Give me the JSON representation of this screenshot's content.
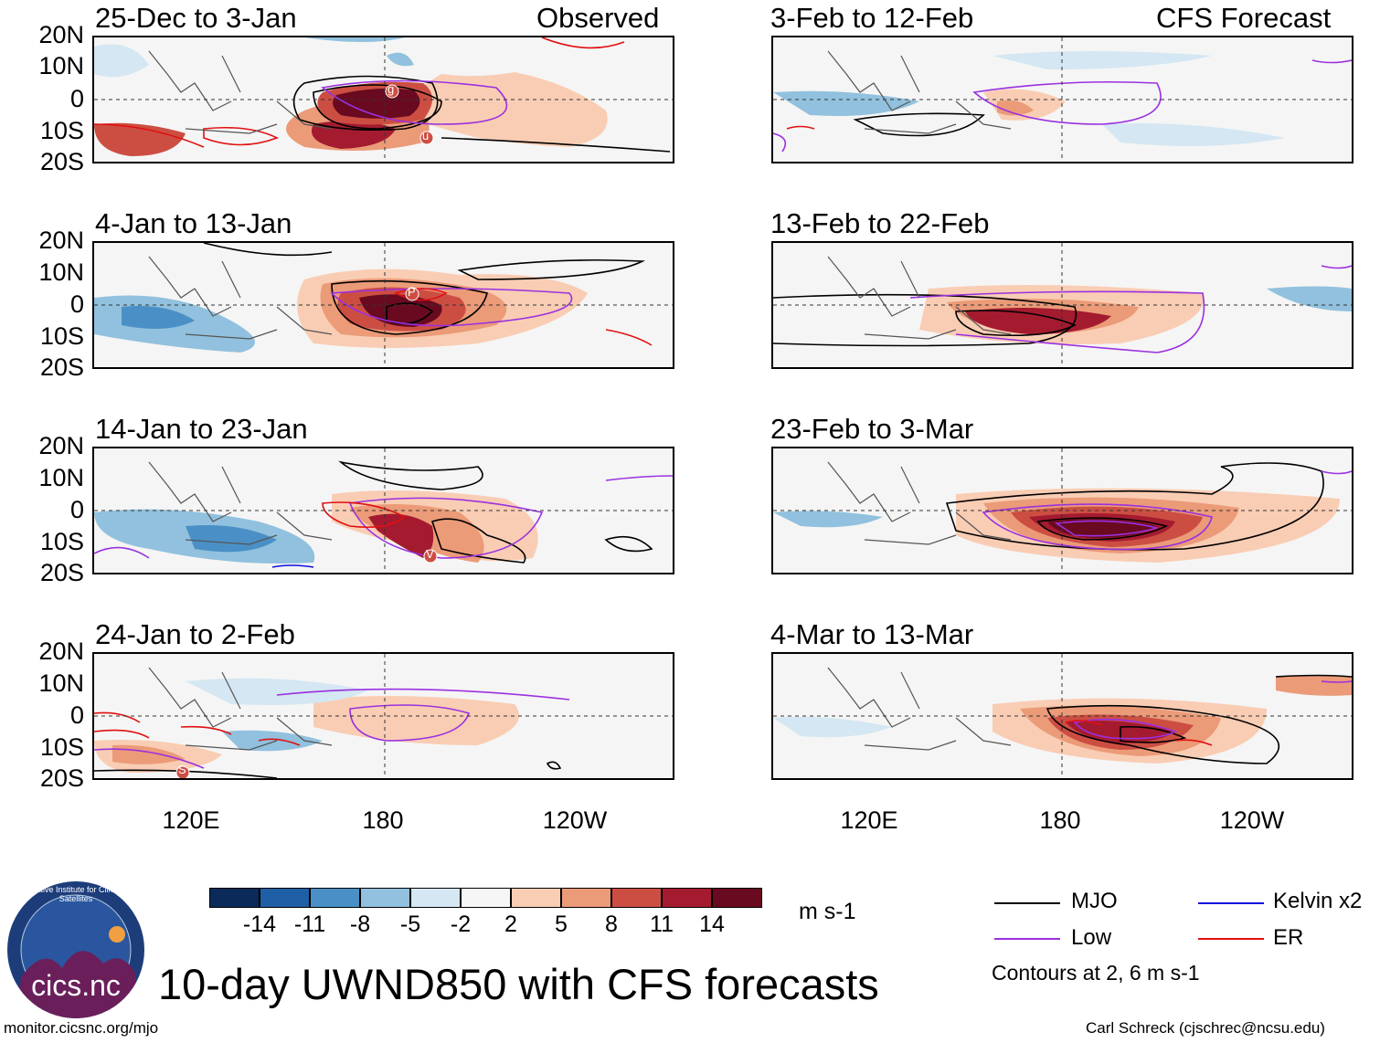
{
  "left_panels": [
    {
      "title": "25-Dec to 3-Jan",
      "tag": "Observed"
    },
    {
      "title": "4-Jan to 13-Jan",
      "tag": ""
    },
    {
      "title": "14-Jan to 23-Jan",
      "tag": ""
    },
    {
      "title": "24-Jan to 2-Feb",
      "tag": ""
    }
  ],
  "right_panels": [
    {
      "title": "3-Feb to 12-Feb",
      "tag": "CFS Forecast"
    },
    {
      "title": "13-Feb to 22-Feb",
      "tag": ""
    },
    {
      "title": "23-Feb to 3-Mar",
      "tag": ""
    },
    {
      "title": "4-Mar to 13-Mar",
      "tag": ""
    }
  ],
  "y_ticks": [
    "20N",
    "10N",
    "0",
    "10S",
    "20S"
  ],
  "x_ticks": [
    "120E",
    "180",
    "120W"
  ],
  "markers": {
    "g": "g",
    "u": "u",
    "p": "P",
    "v": "V",
    "s": "S"
  },
  "colorbar": {
    "labels": [
      "-14",
      "-11",
      "-8",
      "-5",
      "-2",
      "2",
      "5",
      "8",
      "11",
      "14"
    ],
    "colors": [
      "#0b2a5a",
      "#1f5fa6",
      "#4a90c6",
      "#91c1de",
      "#d4e7f2",
      "#f6f6f6",
      "#f9cdb4",
      "#eb9b78",
      "#cc4e43",
      "#a41b2f",
      "#690a20"
    ],
    "units": "m s-1"
  },
  "legend": {
    "mjo": "MJO",
    "kelvin": "Kelvin x2",
    "low": "Low",
    "er": "ER",
    "contours": "Contours at 2, 6 m s-1",
    "colors": {
      "mjo": "#000000",
      "kelvin": "#1010e0",
      "low": "#9b30e0",
      "er": "#e01010"
    }
  },
  "title": "10-day UWND850 with CFS forecasts",
  "logo_text": "cics.nc",
  "logo_ring_text": "Cooperative Institute for Climate and Satellites",
  "url": "monitor.cicsnc.org/mjo",
  "credit": "Carl Schreck (cjschrec@ncsu.edu)"
}
